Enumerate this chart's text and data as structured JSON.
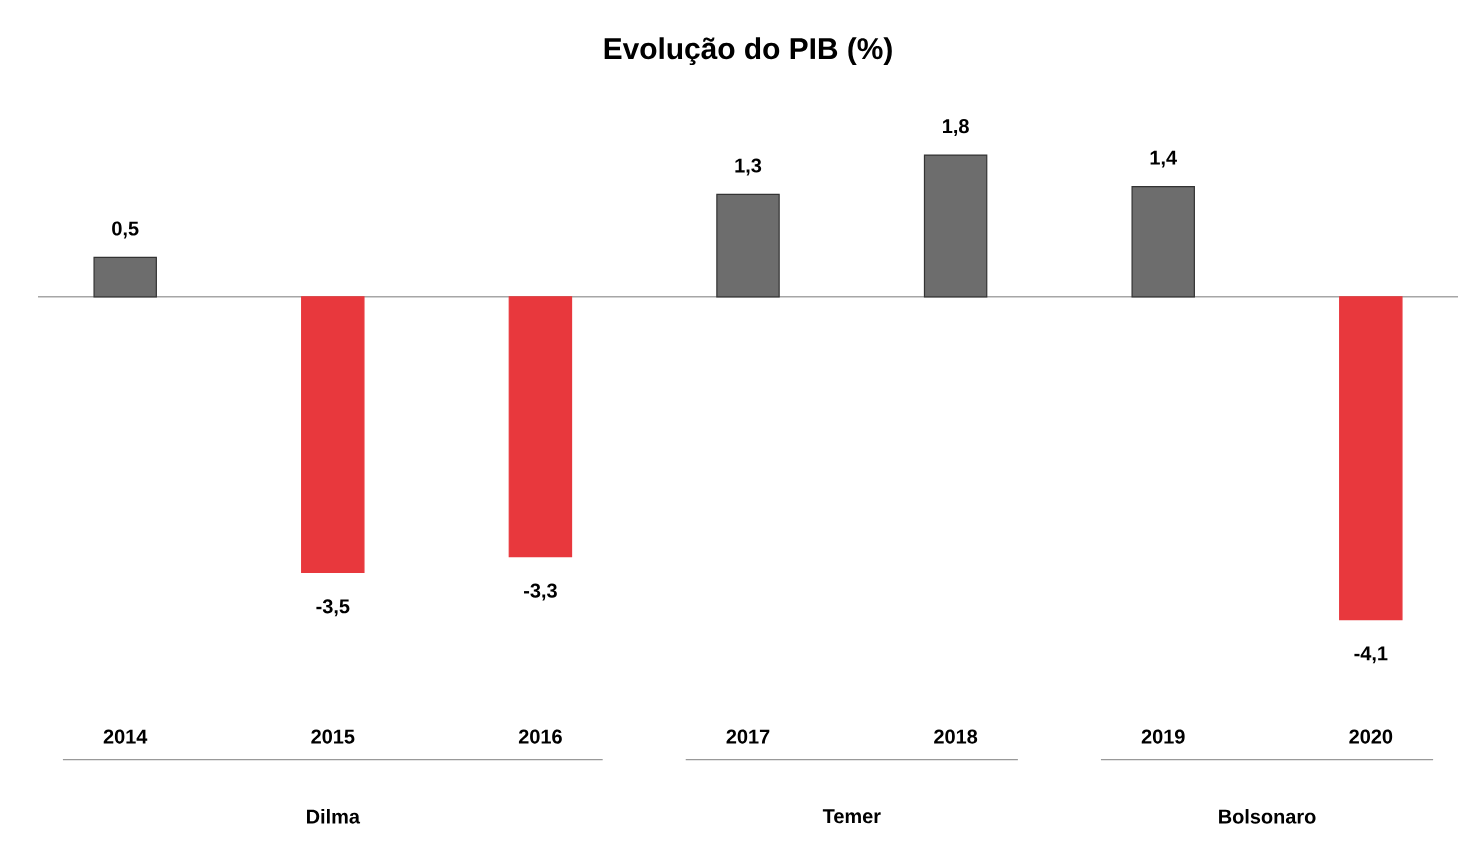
{
  "chart_data": {
    "type": "bar",
    "title": "Evolução do PIB (%)",
    "categories": [
      "2014",
      "2015",
      "2016",
      "2017",
      "2018",
      "2019",
      "2020"
    ],
    "values": [
      0.5,
      -3.5,
      -3.3,
      1.3,
      1.8,
      1.4,
      -4.1
    ],
    "colors": [
      "#6d6d6d",
      "#e8383d",
      "#e8383d",
      "#6d6d6d",
      "#6d6d6d",
      "#6d6d6d",
      "#e8383d"
    ],
    "value_labels": [
      "0,5",
      "-3,5",
      "-3,3",
      "1,3",
      "1,8",
      "1,4",
      "-4,1"
    ],
    "annotations": [
      "Dilma",
      "Temer",
      "Bolsonaro"
    ]
  }
}
